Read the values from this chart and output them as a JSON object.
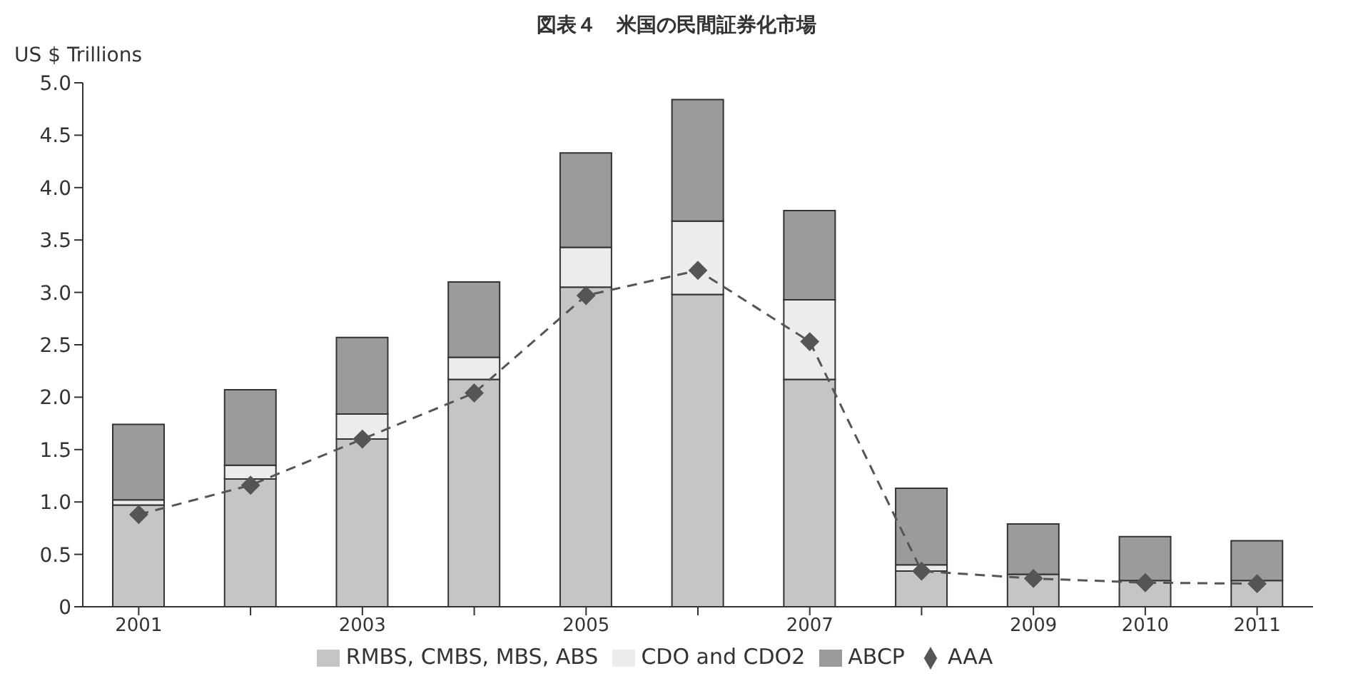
{
  "chart_data": {
    "type": "bar",
    "title": "図表４　米国の民間証券化市場",
    "ylabel": "US $ Trillions",
    "categories": [
      "2001",
      null,
      "2003",
      null,
      "2005",
      null,
      "2007",
      null,
      "2009",
      "2010",
      "2011"
    ],
    "stacked": true,
    "series": [
      {
        "name": "RMBS, CMBS, MBS, ABS",
        "color": "#c4c5c7",
        "values": [
          0.97,
          1.22,
          1.6,
          2.17,
          3.05,
          2.98,
          2.17,
          0.34,
          0.31,
          0.25,
          0.25
        ]
      },
      {
        "name": "CDO and CDO2",
        "color": "#ececec",
        "values": [
          0.05,
          0.13,
          0.24,
          0.21,
          0.38,
          0.7,
          0.76,
          0.06,
          0,
          0,
          0
        ]
      },
      {
        "name": "ABCP",
        "color": "#9a9b9d",
        "values": [
          0.72,
          0.72,
          0.73,
          0.72,
          0.9,
          1.16,
          0.85,
          0.73,
          0.48,
          0.42,
          0.38
        ]
      },
      {
        "name": "AAA",
        "type": "line",
        "color": "#555555",
        "marker": "diamond",
        "line_style": "dashed",
        "values": [
          0.88,
          1.16,
          1.6,
          2.04,
          2.97,
          3.21,
          2.53,
          0.34,
          0.27,
          0.23,
          0.22
        ]
      }
    ],
    "ylim": [
      0,
      5
    ],
    "yticks": [
      0,
      0.5,
      {
        "value": 1,
        "label": "1.0"
      },
      1.5,
      {
        "value": 2,
        "label": "2.0"
      },
      2.5,
      {
        "value": 3,
        "label": "3.0"
      },
      3.5,
      {
        "value": 4,
        "label": "4.0"
      },
      4.5,
      {
        "value": 5,
        "label": "5.0"
      }
    ],
    "grid": false,
    "legend": "bottom"
  }
}
